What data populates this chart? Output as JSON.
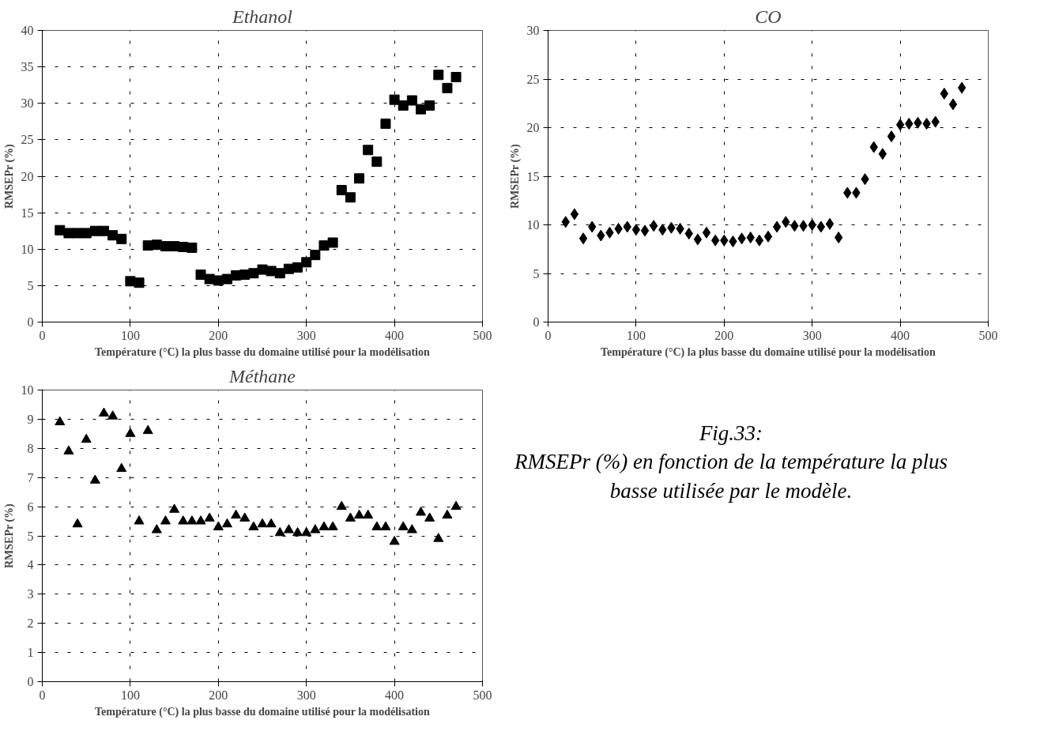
{
  "chart_data": [
    {
      "type": "scatter",
      "title": "Ethanol",
      "xlabel": "Température (°C) la plus basse du domaine utilisé pour la modélisation",
      "ylabel": "RMSEPr (%)",
      "marker": "square",
      "grid": true,
      "xlim": [
        0,
        500
      ],
      "xticks": [
        0,
        100,
        200,
        300,
        400,
        500
      ],
      "ylim": [
        0,
        40
      ],
      "yticks": [
        0,
        5,
        10,
        15,
        20,
        25,
        30,
        35,
        40
      ],
      "x": [
        20,
        30,
        40,
        50,
        60,
        70,
        80,
        90,
        100,
        110,
        120,
        130,
        140,
        150,
        160,
        170,
        180,
        190,
        200,
        210,
        220,
        230,
        240,
        250,
        260,
        270,
        280,
        290,
        300,
        310,
        320,
        330,
        340,
        350,
        360,
        370,
        380,
        390,
        400,
        410,
        420,
        430,
        440,
        450,
        460,
        470
      ],
      "series": [
        {
          "color": "#000000",
          "values": [
            12.6,
            12.2,
            12.2,
            12.2,
            12.5,
            12.5,
            11.9,
            11.4,
            5.6,
            5.4,
            10.5,
            10.6,
            10.4,
            10.4,
            10.3,
            10.2,
            6.5,
            5.9,
            5.7,
            5.9,
            6.4,
            6.5,
            6.7,
            7.2,
            7.0,
            6.7,
            7.3,
            7.5,
            8.2,
            9.2,
            10.5,
            10.9,
            18.1,
            17.1,
            19.7,
            23.6,
            22.0,
            27.2,
            30.5,
            29.7,
            30.4,
            29.2,
            29.7,
            33.9,
            32.1,
            33.6
          ]
        }
      ]
    },
    {
      "type": "scatter",
      "title": "CO",
      "xlabel": "Température (°C) la plus basse du domaine utilisé pour la modélisation",
      "ylabel": "RMSEPr (%)",
      "marker": "diamond",
      "grid": true,
      "xlim": [
        0,
        500
      ],
      "xticks": [
        0,
        100,
        200,
        300,
        400,
        500
      ],
      "ylim": [
        0,
        30
      ],
      "yticks": [
        0,
        5,
        10,
        15,
        20,
        25,
        30
      ],
      "x": [
        20,
        30,
        40,
        50,
        60,
        70,
        80,
        90,
        100,
        110,
        120,
        130,
        140,
        150,
        160,
        170,
        180,
        190,
        200,
        210,
        220,
        230,
        240,
        250,
        260,
        270,
        280,
        290,
        300,
        310,
        320,
        330,
        340,
        350,
        360,
        370,
        380,
        390,
        400,
        410,
        420,
        430,
        440,
        450,
        460,
        470
      ],
      "series": [
        {
          "color": "#000000",
          "values": [
            10.3,
            11.1,
            8.6,
            9.8,
            8.9,
            9.2,
            9.6,
            9.8,
            9.5,
            9.4,
            9.9,
            9.5,
            9.7,
            9.6,
            9.1,
            8.5,
            9.2,
            8.4,
            8.4,
            8.3,
            8.6,
            8.7,
            8.4,
            8.8,
            9.8,
            10.3,
            9.9,
            9.9,
            10.0,
            9.8,
            10.1,
            8.7,
            13.3,
            13.3,
            14.7,
            18.0,
            17.3,
            19.1,
            20.3,
            20.4,
            20.5,
            20.4,
            20.6,
            23.5,
            22.4,
            24.1
          ]
        }
      ]
    },
    {
      "type": "scatter",
      "title": "Méthane",
      "xlabel": "Température (°C) la plus basse du domaine utilisé pour la modélisation",
      "ylabel": "RMSEPr (%)",
      "marker": "triangle",
      "grid": true,
      "xlim": [
        0,
        500
      ],
      "xticks": [
        0,
        100,
        200,
        300,
        400,
        500
      ],
      "ylim": [
        0,
        10
      ],
      "yticks": [
        0,
        1,
        2,
        3,
        4,
        5,
        6,
        7,
        8,
        9,
        10
      ],
      "x": [
        20,
        30,
        40,
        50,
        60,
        70,
        80,
        90,
        100,
        110,
        120,
        130,
        140,
        150,
        160,
        170,
        180,
        190,
        200,
        210,
        220,
        230,
        240,
        250,
        260,
        270,
        280,
        290,
        300,
        310,
        320,
        330,
        340,
        350,
        360,
        370,
        380,
        390,
        400,
        410,
        420,
        430,
        440,
        450,
        460,
        470
      ],
      "series": [
        {
          "color": "#000000",
          "values": [
            8.9,
            7.9,
            5.4,
            8.3,
            6.9,
            9.2,
            9.1,
            7.3,
            8.5,
            5.5,
            8.6,
            5.2,
            5.5,
            5.9,
            5.5,
            5.5,
            5.5,
            5.6,
            5.3,
            5.4,
            5.7,
            5.6,
            5.3,
            5.4,
            5.4,
            5.1,
            5.2,
            5.1,
            5.1,
            5.2,
            5.3,
            5.3,
            6.0,
            5.6,
            5.7,
            5.7,
            5.3,
            5.3,
            4.8,
            5.3,
            5.2,
            5.8,
            5.6,
            4.9,
            5.7,
            6.0
          ]
        }
      ]
    },
    {
      "type": "other",
      "annotations": [
        "Fig.33:",
        "RMSEPr (%) en fonction de la température la plus basse utilisée par le modèle."
      ]
    }
  ]
}
